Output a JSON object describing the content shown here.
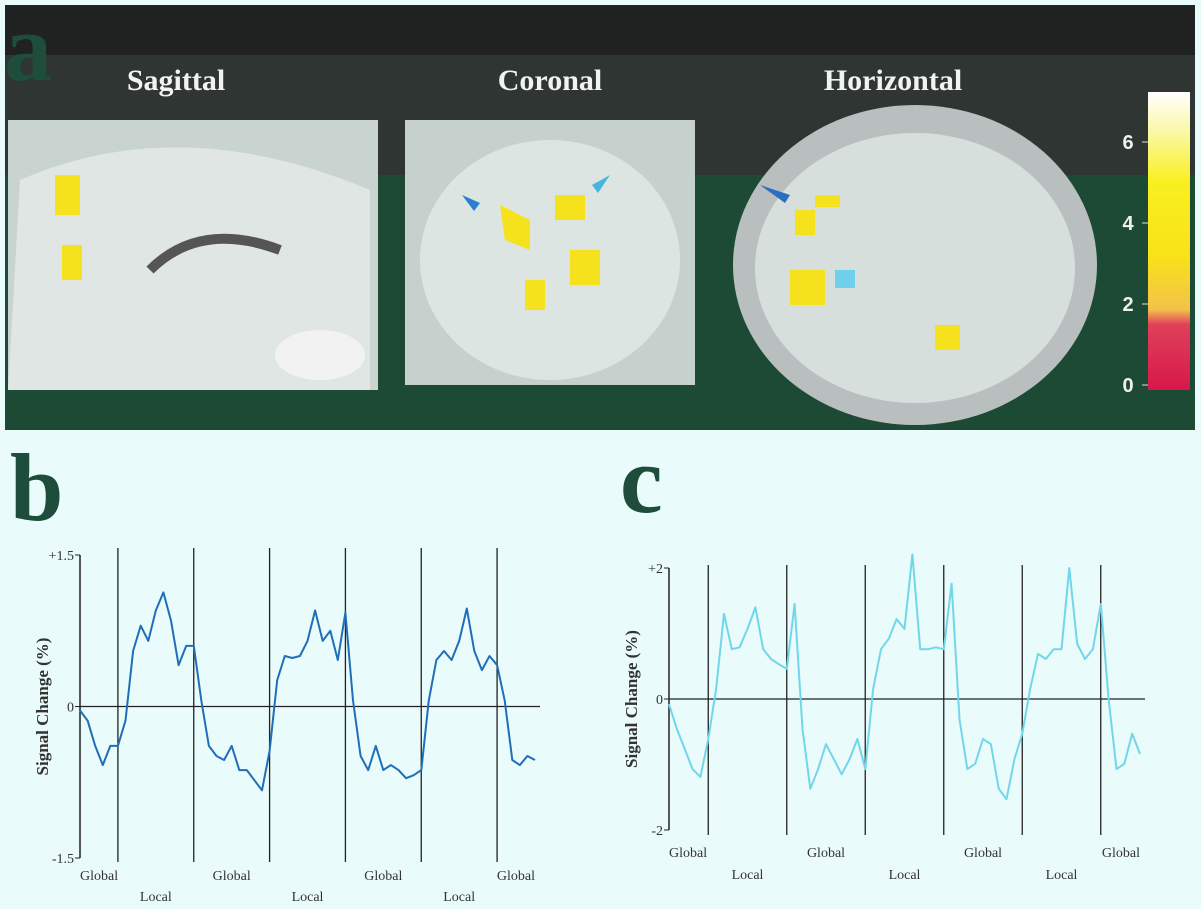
{
  "panel_a": {
    "label": "a",
    "views": [
      "Sagittal",
      "Coronal",
      "Horizontal"
    ],
    "colorbar": {
      "ticks": [
        0,
        2,
        4,
        6
      ]
    }
  },
  "chart_data": [
    {
      "type": "line",
      "panel_label": "b",
      "y_label": "Signal Change (%)",
      "color": "#1f6fb8",
      "x": [
        0,
        1,
        2,
        3,
        4,
        5,
        6,
        7,
        8,
        9,
        10,
        11,
        12,
        13,
        14,
        15,
        16,
        17,
        18,
        19,
        20,
        21,
        22,
        23,
        24,
        25,
        26,
        27,
        28,
        29,
        30,
        31,
        32,
        33,
        34,
        35,
        36,
        37,
        38,
        39,
        40,
        41,
        42,
        43,
        44,
        45,
        46,
        47,
        48,
        49,
        50,
        51,
        52,
        53,
        54,
        55,
        56,
        57,
        58,
        59,
        60
      ],
      "values": [
        -0.04,
        -0.14,
        -0.39,
        -0.58,
        -0.39,
        -0.39,
        -0.14,
        0.55,
        0.8,
        0.65,
        0.95,
        1.13,
        0.85,
        0.41,
        0.6,
        0.6,
        0.06,
        -0.39,
        -0.49,
        -0.53,
        -0.39,
        -0.63,
        -0.63,
        -0.73,
        -0.83,
        -0.44,
        0.26,
        0.5,
        0.48,
        0.5,
        0.65,
        0.95,
        0.65,
        0.75,
        0.46,
        0.93,
        0.06,
        -0.49,
        -0.63,
        -0.39,
        -0.63,
        -0.58,
        -0.63,
        -0.71,
        -0.68,
        -0.63,
        0.06,
        0.46,
        0.55,
        0.46,
        0.65,
        0.97,
        0.55,
        0.36,
        0.5,
        0.41,
        0.06,
        -0.53,
        -0.58,
        -0.49,
        -0.53
      ],
      "xlim": [
        0,
        60
      ],
      "ylim": [
        -1.5,
        1.5
      ],
      "yticks": [
        {
          "value": 1.5,
          "label": "+1.5"
        },
        0,
        {
          "value": -1.5,
          "label": "-1.5"
        }
      ],
      "xticks": [
        {
          "value": 0,
          "label": "Global"
        },
        {
          "value": 10,
          "label": "Local"
        },
        {
          "value": 20,
          "label": "Global"
        },
        {
          "value": 30,
          "label": "Local"
        },
        {
          "value": 40,
          "label": "Global"
        },
        {
          "value": 50,
          "label": "Local"
        },
        {
          "value": 60,
          "label": "Global"
        }
      ],
      "block_boundaries": [
        5,
        15,
        25,
        35,
        45,
        55
      ]
    },
    {
      "type": "line",
      "panel_label": "c",
      "y_label": "Signal Change (%)",
      "color": "#72d6ea",
      "x": [
        0,
        1,
        2,
        3,
        4,
        5,
        6,
        7,
        8,
        9,
        10,
        11,
        12,
        13,
        14,
        15,
        16,
        17,
        18,
        19,
        20,
        21,
        22,
        23,
        24,
        25,
        26,
        27,
        28,
        29,
        30,
        31,
        32,
        33,
        34,
        35,
        36,
        37,
        38,
        39,
        40,
        41,
        42,
        43,
        44,
        45,
        46,
        47,
        48,
        49,
        50,
        51,
        52,
        53,
        54,
        55,
        56,
        57,
        58,
        59,
        60
      ],
      "values": [
        -0.08,
        -0.46,
        -0.76,
        -1.07,
        -1.19,
        -0.61,
        0.15,
        1.3,
        0.76,
        0.79,
        1.07,
        1.4,
        0.76,
        0.61,
        0.53,
        0.46,
        1.45,
        -0.46,
        -1.37,
        -1.07,
        -0.69,
        -0.92,
        -1.15,
        -0.92,
        -0.61,
        -1.07,
        0.15,
        0.76,
        0.92,
        1.22,
        1.07,
        2.21,
        0.76,
        0.76,
        0.79,
        0.76,
        1.76,
        -0.31,
        -1.07,
        -0.99,
        -0.61,
        -0.69,
        -1.37,
        -1.53,
        -0.92,
        -0.53,
        0.15,
        0.69,
        0.61,
        0.76,
        0.76,
        2.0,
        0.84,
        0.61,
        0.76,
        1.45,
        0,
        -1.07,
        -0.99,
        -0.53,
        -0.84
      ],
      "xlim": [
        0,
        60
      ],
      "ylim": [
        -2,
        2
      ],
      "yticks": [
        {
          "value": 2,
          "label": "+2"
        },
        0,
        -2
      ],
      "xticks": [
        {
          "value": 0,
          "label": "Global"
        },
        {
          "value": 10,
          "label": "Local"
        },
        {
          "value": 20,
          "label": "Global"
        },
        {
          "value": 30,
          "label": "Local"
        },
        {
          "value": 40,
          "label": "Global"
        },
        {
          "value": 50,
          "label": "Local"
        },
        {
          "value": 60,
          "label": "Global"
        }
      ],
      "block_boundaries": [
        5,
        15,
        25,
        35,
        45,
        55
      ]
    }
  ]
}
